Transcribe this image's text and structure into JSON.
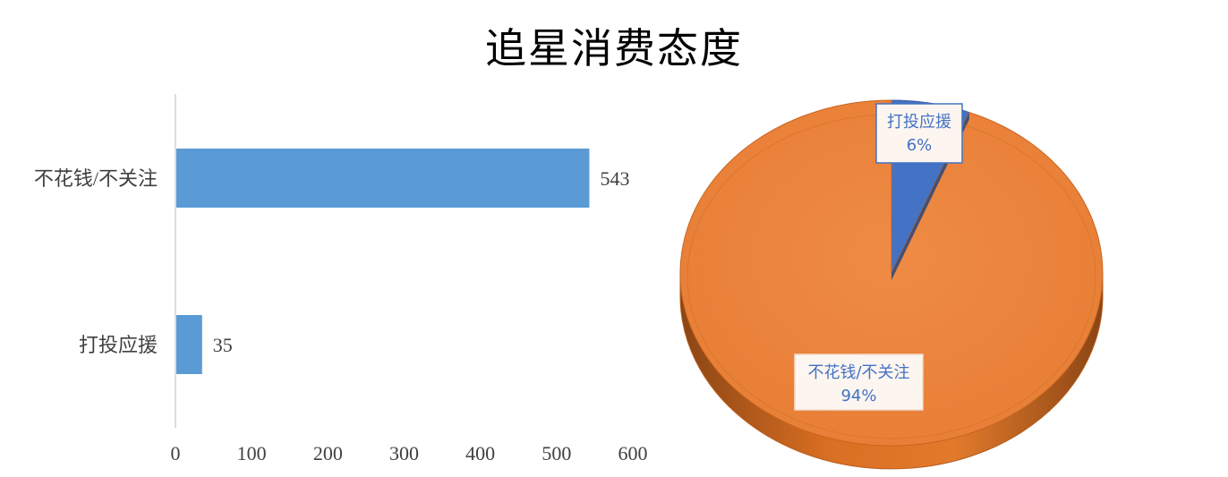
{
  "title": "追星消费态度",
  "chart_data": [
    {
      "type": "bar",
      "orientation": "horizontal",
      "categories": [
        "不花钱/不关注",
        "打投应援"
      ],
      "values": [
        543,
        35
      ],
      "xlim": [
        0,
        600
      ],
      "xticks": [
        0,
        100,
        200,
        300,
        400,
        500,
        600
      ],
      "data_labels": true,
      "grid": false,
      "color": "#5b9bd5"
    },
    {
      "type": "pie",
      "style": "3d",
      "slices": [
        {
          "label": "打投应援",
          "percent_label": "6%",
          "value": 6,
          "color": "#4472c4"
        },
        {
          "label": "不花钱/不关注",
          "percent_label": "94%",
          "value": 94,
          "color": "#ed7d31"
        }
      ]
    }
  ]
}
